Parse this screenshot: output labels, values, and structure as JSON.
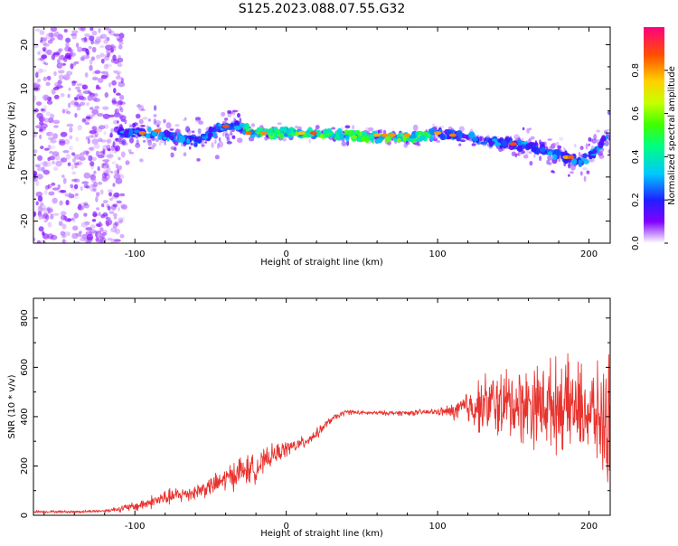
{
  "title": "S125.2023.088.07.55.G32",
  "chart_data": [
    {
      "type": "heatmap",
      "xlabel": "Height of straight line (km)",
      "ylabel": "Frequency (Hz)",
      "xlim": [
        -167,
        214
      ],
      "ylim": [
        -25,
        24
      ],
      "xticks": [
        -100,
        0,
        100,
        200
      ],
      "yticks": [
        -20,
        -10,
        0,
        10,
        20
      ],
      "colorbar": {
        "label": "Normalized spectral amplitude",
        "range": [
          0,
          1
        ],
        "ticks": [
          "0.0",
          "0.2",
          "0.4",
          "0.6",
          "0.8"
        ]
      },
      "ridge": {
        "x": [
          -110,
          -90,
          -75,
          -60,
          -50,
          -42,
          -35,
          -28,
          -20,
          -10,
          0,
          20,
          40,
          60,
          80,
          95,
          100,
          110,
          120,
          135,
          150,
          165,
          175,
          185,
          195,
          205,
          213
        ],
        "y": [
          0,
          0,
          -1,
          -2,
          0,
          1.5,
          2,
          1,
          0,
          0,
          0,
          0,
          -0.5,
          -1,
          -1,
          -0.5,
          0,
          -0.5,
          -1,
          -2,
          -2.5,
          -3.5,
          -4.5,
          -5.5,
          -6.5,
          -4,
          0
        ]
      }
    },
    {
      "type": "line",
      "xlabel": "Height of straight line (km)",
      "ylabel": "SNR (10 * v/v)",
      "xlim": [
        -167,
        214
      ],
      "ylim": [
        0,
        880
      ],
      "xticks": [
        -100,
        0,
        100,
        200
      ],
      "yticks": [
        0,
        200,
        400,
        600,
        800
      ],
      "color": "#e8332e",
      "envelope": {
        "x": [
          -167,
          -140,
          -120,
          -100,
          -80,
          -60,
          -45,
          -30,
          -20,
          -10,
          0,
          10,
          20,
          30,
          40,
          50,
          60,
          80,
          100,
          110,
          120,
          130,
          140,
          150,
          160,
          170,
          180,
          190,
          200,
          205,
          210,
          214
        ],
        "y": [
          15,
          14,
          18,
          35,
          70,
          95,
          130,
          180,
          190,
          240,
          270,
          290,
          330,
          390,
          420,
          415,
          415,
          415,
          420,
          420,
          440,
          450,
          450,
          450,
          450,
          450,
          450,
          440,
          420,
          400,
          380,
          400
        ],
        "noise": [
          5,
          5,
          6,
          18,
          30,
          30,
          40,
          60,
          50,
          40,
          30,
          25,
          20,
          12,
          10,
          8,
          8,
          10,
          12,
          30,
          70,
          110,
          130,
          140,
          150,
          160,
          170,
          170,
          170,
          180,
          220,
          240
        ]
      }
    }
  ]
}
